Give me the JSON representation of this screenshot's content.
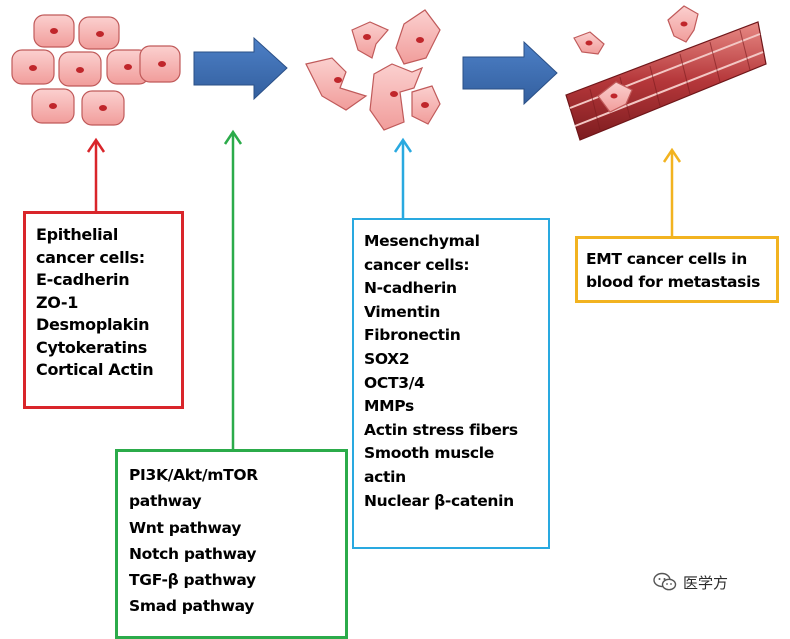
{
  "epithelial": {
    "lines": [
      "Epithelial",
      "cancer cells:",
      "E-cadherin",
      "ZO-1",
      "Desmoplakin",
      "Cytokeratins",
      "Cortical Actin"
    ],
    "color": "#d9252a"
  },
  "mesenchymal": {
    "lines": [
      "Mesenchymal",
      "cancer cells:",
      "N-cadherin",
      "Vimentin",
      "Fibronectin",
      "SOX2",
      "OCT3/4",
      "MMPs",
      "Actin stress fibers",
      "Smooth muscle",
      "actin",
      "Nuclear β-catenin"
    ],
    "color": "#29a9e0"
  },
  "pathways": {
    "lines": [
      "PI3K/Akt/mTOR",
      "pathway",
      "Wnt pathway",
      "Notch pathway",
      "TGF-β pathway",
      "Smad pathway"
    ],
    "color": "#2bab4a"
  },
  "emt": {
    "lines": [
      "EMT cancer cells in",
      "blood for metastasis"
    ],
    "color": "#f2b320"
  },
  "watermark": {
    "text": "医学方",
    "icon": "wechat-icon"
  },
  "colors": {
    "block_arrow": "#3d6fb8",
    "cell_fill": "#f5b0ae",
    "cell_outline": "#c05a5a",
    "nucleus": "#c0262b",
    "vessel": "#b5373a"
  }
}
